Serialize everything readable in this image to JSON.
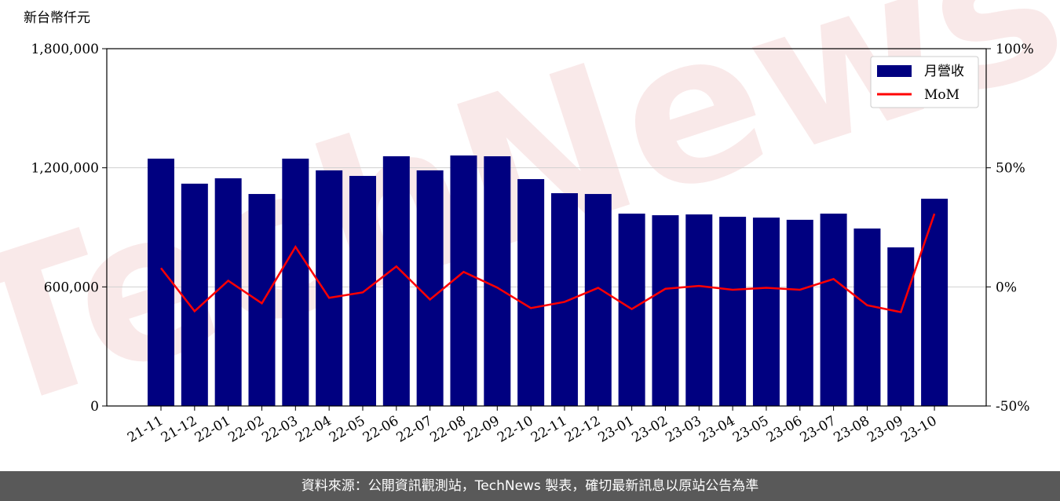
{
  "chart_data": {
    "type": "bar",
    "ylabel": "新台幣仟元",
    "watermark": "TechNews",
    "categories": [
      "21-11",
      "21-12",
      "22-01",
      "22-02",
      "22-03",
      "22-04",
      "22-05",
      "22-06",
      "22-07",
      "22-08",
      "22-09",
      "22-10",
      "22-11",
      "22-12",
      "23-01",
      "23-02",
      "23-03",
      "23-04",
      "23-05",
      "23-06",
      "23-07",
      "23-08",
      "23-09",
      "23-10"
    ],
    "series": [
      {
        "name": "月營收",
        "color": "#000080",
        "type": "bar",
        "values": [
          1246000,
          1120000,
          1147000,
          1068000,
          1246000,
          1187000,
          1159000,
          1258000,
          1187000,
          1262000,
          1258000,
          1143000,
          1072000,
          1068000,
          969000,
          961000,
          965000,
          953000,
          949000,
          938000,
          969000,
          894000,
          799000,
          1044000
        ]
      },
      {
        "name": "MoM",
        "color": "#ff0000",
        "type": "line",
        "axis": "y2",
        "values": [
          7.9,
          -10.2,
          2.6,
          -6.9,
          16.8,
          -4.6,
          -2.3,
          8.6,
          -5.3,
          6.3,
          -0.3,
          -8.9,
          -6.3,
          -0.4,
          -9.3,
          -0.8,
          0.4,
          -1.2,
          -0.4,
          -1.2,
          3.3,
          -7.7,
          -10.6,
          30.7
        ]
      }
    ],
    "ylim": [
      0,
      1800000
    ],
    "yticks": [
      0,
      {
        "value": 600000,
        "label": "600,000"
      },
      {
        "value": 1200000,
        "label": "1,200,000"
      },
      {
        "value": 1800000,
        "label": "1,800,000"
      }
    ],
    "y2lim": [
      -50,
      100
    ],
    "y2ticks": [
      {
        "value": -50,
        "label": "-50%"
      },
      {
        "value": 0,
        "label": "0%"
      },
      {
        "value": 50,
        "label": "50%"
      },
      {
        "value": 100,
        "label": "100%"
      }
    ],
    "grid": true,
    "legend": "upper right"
  },
  "footer": {
    "source": "資料來源：公開資訊觀測站，TechNews 製表，確切最新訊息以原站公告為準"
  }
}
